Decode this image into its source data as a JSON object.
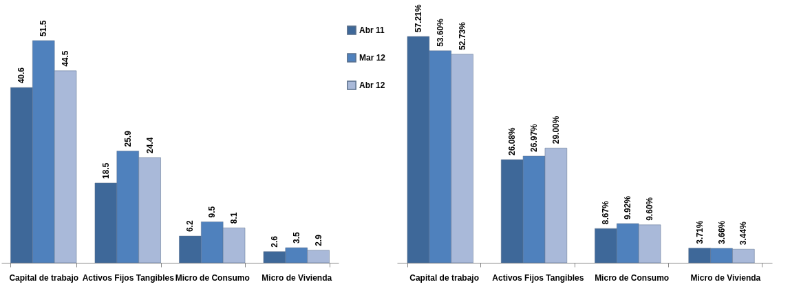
{
  "chart_data": [
    {
      "type": "bar",
      "categories": [
        "Capital de trabajo",
        "Activos Fijos Tangibles",
        "Micro de Consumo",
        "Micro de Vivienda"
      ],
      "series": [
        {
          "name": "Abr 11",
          "color": "#3e6899",
          "values": [
            40.6,
            18.5,
            6.2,
            2.6
          ]
        },
        {
          "name": "Mar 12",
          "color": "#4f81bd",
          "values": [
            51.5,
            25.9,
            9.5,
            3.5
          ]
        },
        {
          "name": "Abr 12",
          "color": "#a9b9d9",
          "values": [
            44.5,
            24.4,
            8.1,
            2.9
          ]
        }
      ],
      "data_labels": true,
      "legend": "right"
    },
    {
      "type": "bar",
      "categories": [
        "Capital de trabajo",
        "Activos Fijos Tangibles",
        "Micro de Consumo",
        "Micro de Vivienda"
      ],
      "series": [
        {
          "color": "#3e6899",
          "values": [
            57.21,
            26.08,
            8.67,
            3.71
          ],
          "value_labels": [
            "57.21%",
            "26.08%",
            "8.67%",
            "3.71%"
          ]
        },
        {
          "color": "#4f81bd",
          "values": [
            53.6,
            26.97,
            9.92,
            3.66
          ],
          "value_labels": [
            "53.60%",
            "26.97%",
            "9.92%",
            "3.66%"
          ]
        },
        {
          "color": "#a9b9d9",
          "values": [
            52.73,
            29.0,
            9.6,
            3.44
          ],
          "value_labels": [
            "52.73%",
            "29.00%",
            "9.60%",
            "3.44%"
          ]
        }
      ]
    }
  ]
}
